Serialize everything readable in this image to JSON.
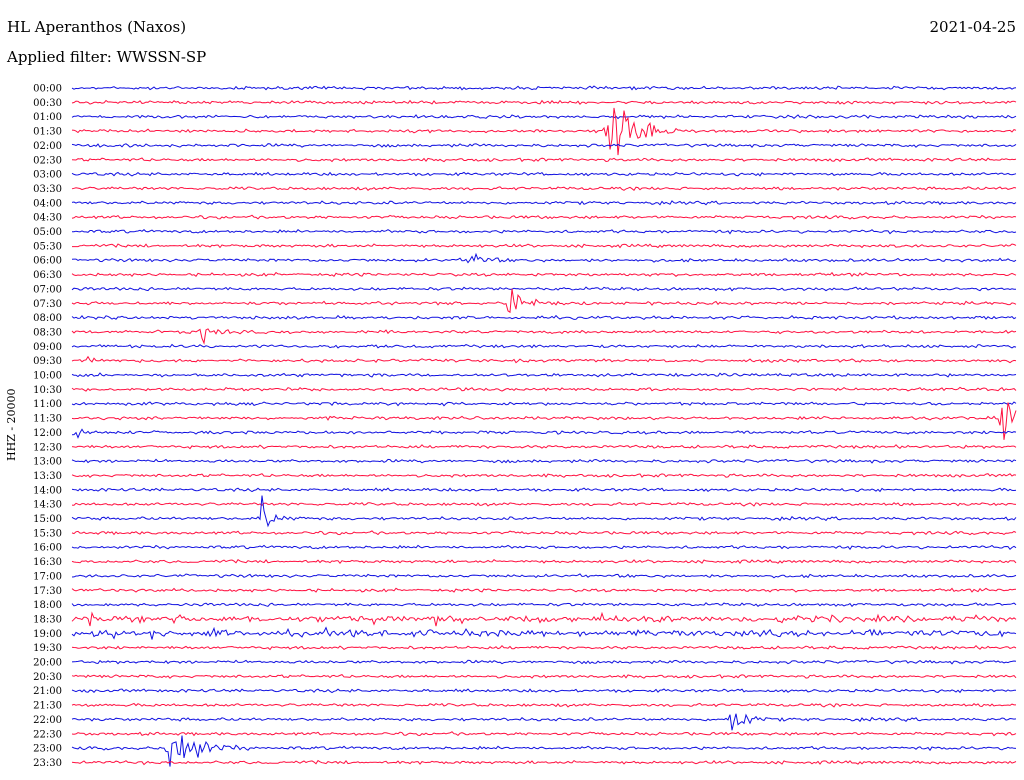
{
  "header": {
    "station": "HL Aperanthos (Naxos)",
    "date": "2021-04-25",
    "filter": "Applied filter: WWSSN-SP"
  },
  "chart_data": {
    "type": "helicorder",
    "channel_label": "HHZ - 20000",
    "colors": {
      "trace_a": "#1010e0",
      "trace_b": "#ff1040"
    },
    "rows": [
      "00:00",
      "00:30",
      "01:00",
      "01:30",
      "02:00",
      "02:30",
      "03:00",
      "03:30",
      "04:00",
      "04:30",
      "05:00",
      "05:30",
      "06:00",
      "06:30",
      "07:00",
      "07:30",
      "08:00",
      "08:30",
      "09:00",
      "09:30",
      "10:00",
      "10:30",
      "11:00",
      "11:30",
      "12:00",
      "12:30",
      "13:00",
      "13:30",
      "14:00",
      "14:30",
      "15:00",
      "15:30",
      "16:00",
      "16:30",
      "17:00",
      "17:30",
      "18:00",
      "18:30",
      "19:00",
      "19:30",
      "20:00",
      "20:30",
      "21:00",
      "21:30",
      "22:00",
      "22:30",
      "23:00",
      "23:30"
    ],
    "events": [
      {
        "row": "01:30",
        "minute": 17.0,
        "amplitude": 1.0,
        "duration": 1.6
      },
      {
        "row": "06:00",
        "minute": 12.7,
        "amplitude": 0.35,
        "duration": 0.7
      },
      {
        "row": "07:30",
        "minute": 13.9,
        "amplitude": 0.6,
        "duration": 0.9
      },
      {
        "row": "08:30",
        "minute": 4.1,
        "amplitude": 0.3,
        "duration": 0.7
      },
      {
        "row": "09:30",
        "minute": 0.5,
        "amplitude": 0.3,
        "duration": 0.4
      },
      {
        "row": "11:30",
        "minute": 29.6,
        "amplitude": 0.9,
        "duration": 0.6
      },
      {
        "row": "12:00",
        "minute": 0.1,
        "amplitude": 0.25,
        "duration": 0.4
      },
      {
        "row": "15:00",
        "minute": 6.0,
        "amplitude": 0.4,
        "duration": 0.8
      },
      {
        "row": "22:00",
        "minute": 20.9,
        "amplitude": 0.45,
        "duration": 0.9
      },
      {
        "row": "23:00",
        "minute": 3.1,
        "amplitude": 1.0,
        "duration": 1.5
      }
    ],
    "noisy_rows": [
      "18:30",
      "19:00"
    ],
    "grid": false
  }
}
